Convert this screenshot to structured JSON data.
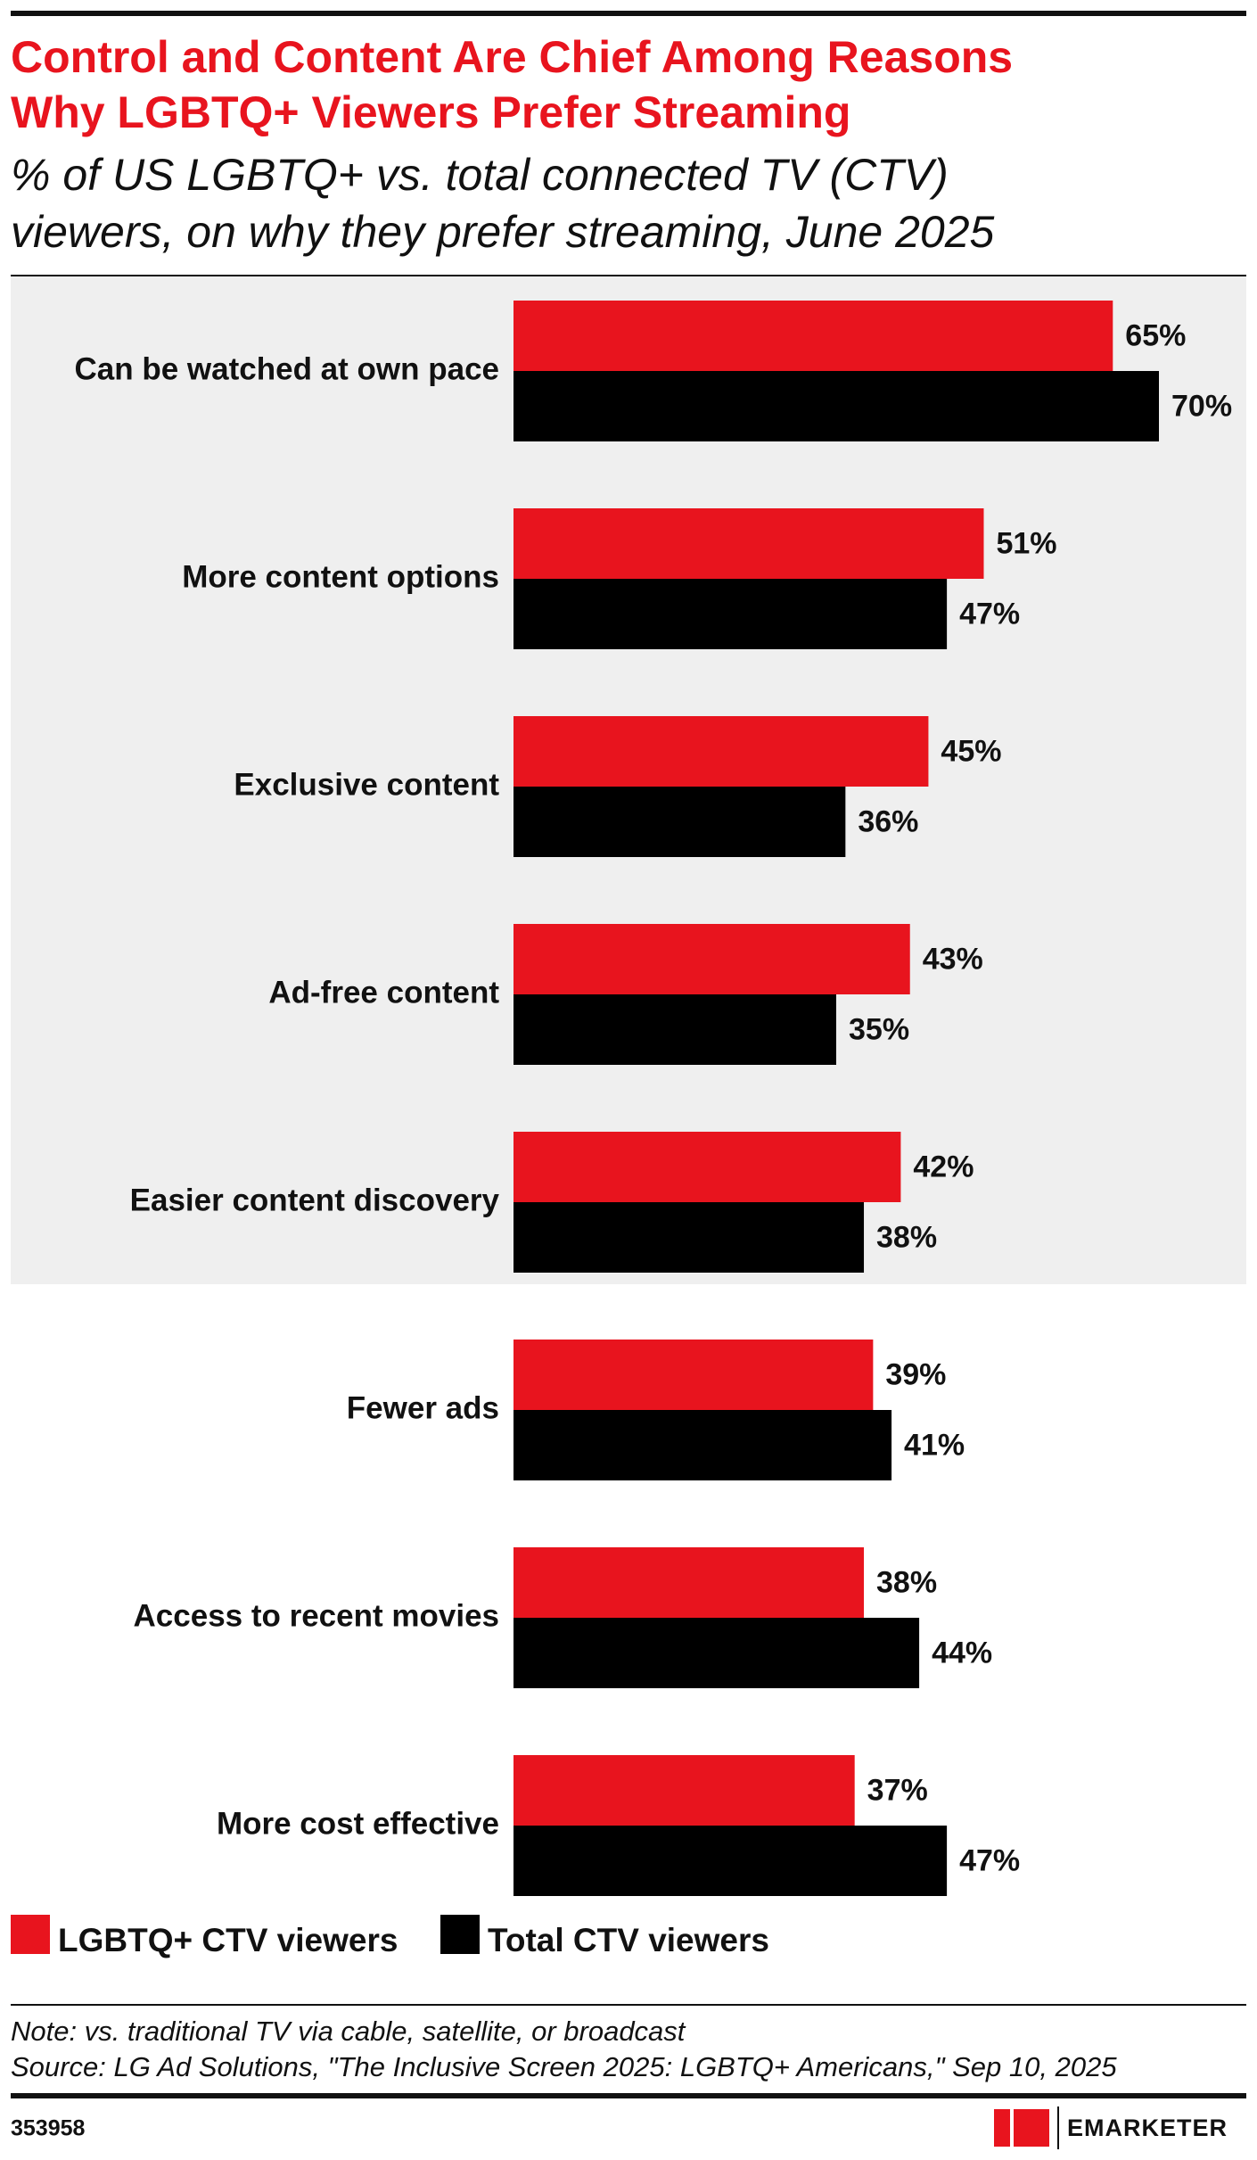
{
  "chart_data": {
    "type": "bar",
    "orientation": "horizontal",
    "title": [
      "Control and Content Are Chief Among Reasons",
      "Why LGBTQ+ Viewers Prefer Streaming"
    ],
    "subtitle": [
      "% of US LGBTQ+ vs. total connected TV (CTV)",
      "viewers, on why they prefer streaming, June 2025"
    ],
    "categories": [
      "Can be watched at own pace",
      "More content options",
      "Exclusive content",
      "Ad-free content",
      "Easier content discovery",
      "Fewer ads",
      "Access to recent movies",
      "More cost effective"
    ],
    "series": [
      {
        "name": "LGBTQ+ CTV viewers",
        "color": "#e8141e",
        "values": [
          65,
          51,
          45,
          43,
          42,
          39,
          38,
          37
        ],
        "value_labels": [
          "65%",
          "51%",
          "45%",
          "43%",
          "42%",
          "39%",
          "38%",
          "37%"
        ]
      },
      {
        "name": "Total CTV viewers",
        "color": "#000000",
        "values": [
          70,
          47,
          36,
          35,
          38,
          41,
          44,
          47
        ],
        "value_labels": [
          "70%",
          "47%",
          "36%",
          "35%",
          "38%",
          "41%",
          "44%",
          "47%"
        ]
      }
    ],
    "note": "Note: vs. traditional TV via cable, satellite, or broadcast",
    "source": "Source: LG Ad Solutions, \"The Inclusive Screen 2025: LGBTQ+ Americans,\" Sep 10, 2025",
    "chart_id": "353958",
    "brand": "EMARKETER"
  }
}
